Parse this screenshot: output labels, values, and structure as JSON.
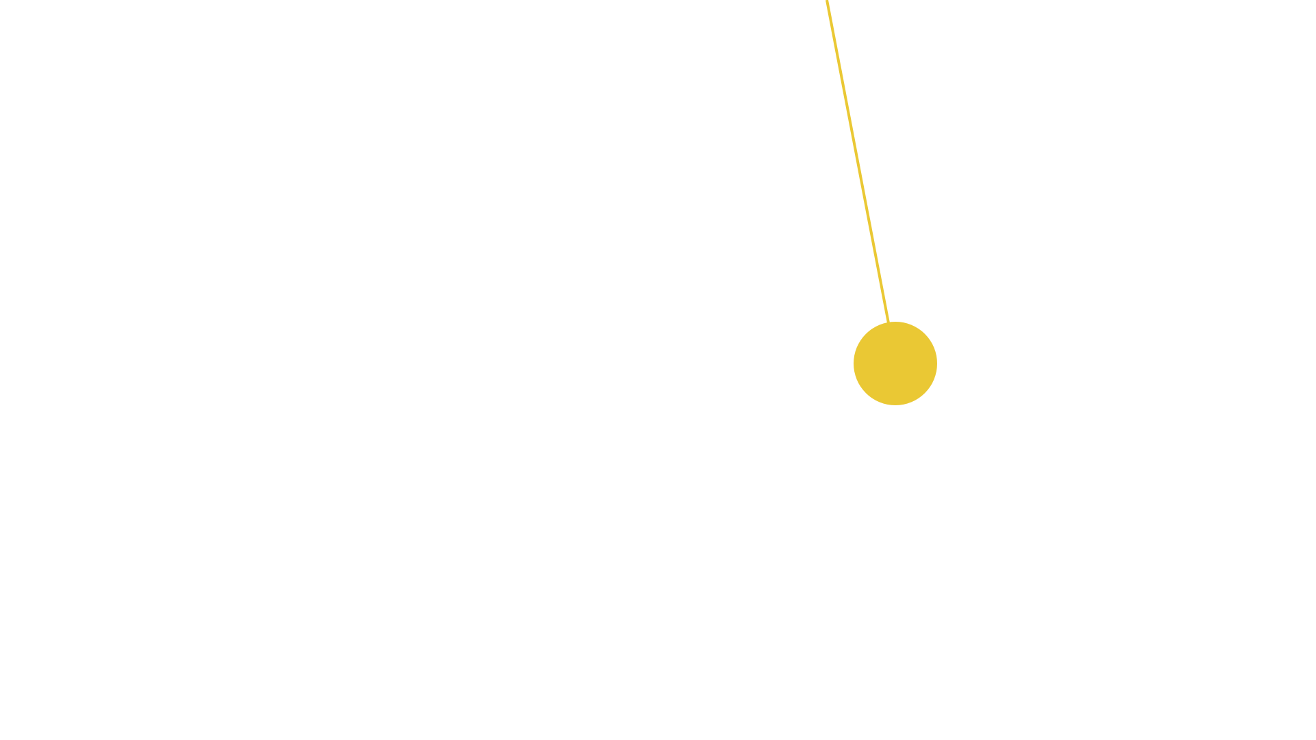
{
  "scene": {
    "background_color": "#ffffff",
    "accent_color": "#eac834",
    "icon": "pendulum-icon"
  }
}
